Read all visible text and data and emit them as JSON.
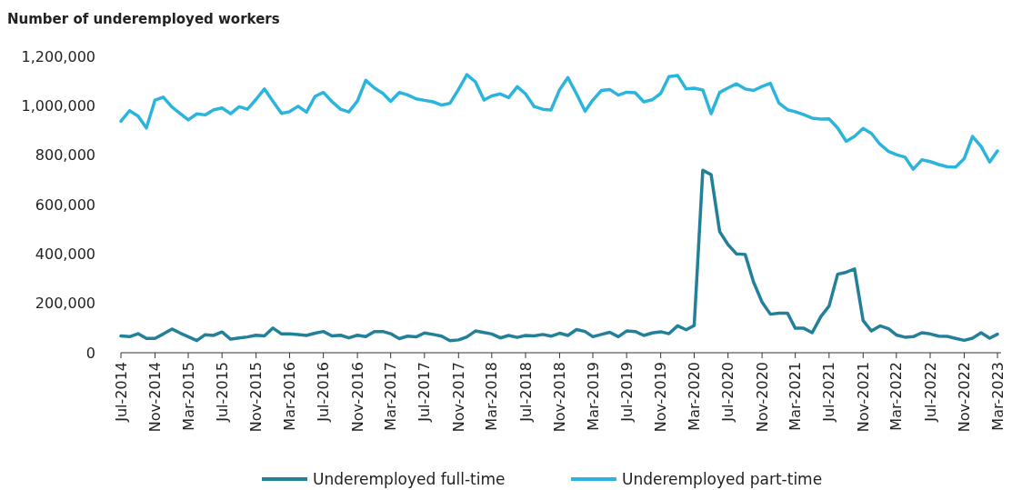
{
  "chart_data": {
    "type": "line",
    "ylabel": "Number of underemployed workers",
    "x": [
      "2014-07",
      "2014-08",
      "2014-09",
      "2014-10",
      "2014-11",
      "2014-12",
      "2015-01",
      "2015-02",
      "2015-03",
      "2015-04",
      "2015-05",
      "2015-06",
      "2015-07",
      "2015-08",
      "2015-09",
      "2015-10",
      "2015-11",
      "2015-12",
      "2016-01",
      "2016-02",
      "2016-03",
      "2016-04",
      "2016-05",
      "2016-06",
      "2016-07",
      "2016-08",
      "2016-09",
      "2016-10",
      "2016-11",
      "2016-12",
      "2017-01",
      "2017-02",
      "2017-03",
      "2017-04",
      "2017-05",
      "2017-06",
      "2017-07",
      "2017-08",
      "2017-09",
      "2017-10",
      "2017-11",
      "2017-12",
      "2018-01",
      "2018-02",
      "2018-03",
      "2018-04",
      "2018-05",
      "2018-06",
      "2018-07",
      "2018-08",
      "2018-09",
      "2018-10",
      "2018-11",
      "2018-12",
      "2019-01",
      "2019-02",
      "2019-03",
      "2019-04",
      "2019-05",
      "2019-06",
      "2019-07",
      "2019-08",
      "2019-09",
      "2019-10",
      "2019-11",
      "2019-12",
      "2020-01",
      "2020-02",
      "2020-03",
      "2020-04",
      "2020-05",
      "2020-06",
      "2020-07",
      "2020-08",
      "2020-09",
      "2020-10",
      "2020-11",
      "2020-12",
      "2021-01",
      "2021-02",
      "2021-03",
      "2021-04",
      "2021-05",
      "2021-06",
      "2021-07",
      "2021-08",
      "2021-09",
      "2021-10",
      "2021-11",
      "2021-12",
      "2022-01",
      "2022-02",
      "2022-03",
      "2022-04",
      "2022-05",
      "2022-06",
      "2022-07",
      "2022-08",
      "2022-09",
      "2022-10",
      "2022-11",
      "2022-12",
      "2023-01",
      "2023-02",
      "2023-03"
    ],
    "series": [
      {
        "name": "Underemployed full-time",
        "color": "#23809b",
        "values": [
          68000,
          65000,
          77000,
          58000,
          58000,
          76000,
          96000,
          79000,
          65000,
          49000,
          73000,
          70000,
          84000,
          55000,
          60000,
          64000,
          71000,
          68000,
          100000,
          76000,
          76000,
          74000,
          70000,
          79000,
          86000,
          68000,
          71000,
          60000,
          71000,
          65000,
          86000,
          86000,
          77000,
          57000,
          67000,
          64000,
          80000,
          74000,
          67000,
          49000,
          52000,
          64000,
          88000,
          82000,
          76000,
          60000,
          70000,
          62000,
          70000,
          68000,
          74000,
          67000,
          79000,
          70000,
          94000,
          86000,
          65000,
          74000,
          83000,
          65000,
          88000,
          86000,
          70000,
          80000,
          85000,
          77000,
          109000,
          93000,
          110000,
          739000,
          721000,
          490000,
          438000,
          400000,
          398000,
          287000,
          205000,
          156000,
          160000,
          160000,
          99000,
          99000,
          81000,
          146000,
          189000,
          318000,
          326000,
          339000,
          130000,
          88000,
          109000,
          97000,
          72000,
          63000,
          65000,
          81000,
          76000,
          67000,
          66000,
          58000,
          50000,
          59000,
          81000,
          59000,
          75000
        ]
      },
      {
        "name": "Underemployed part-time",
        "color": "#2bb5dd",
        "values": [
          937000,
          980000,
          958000,
          910000,
          1023000,
          1035000,
          995000,
          968000,
          943000,
          967000,
          963000,
          984000,
          991000,
          968000,
          996000,
          986000,
          1026000,
          1068000,
          1018000,
          969000,
          976000,
          998000,
          974000,
          1038000,
          1054000,
          1017000,
          986000,
          975000,
          1019000,
          1103000,
          1072000,
          1050000,
          1018000,
          1054000,
          1044000,
          1028000,
          1022000,
          1016000,
          1003000,
          1010000,
          1066000,
          1126000,
          1097000,
          1023000,
          1040000,
          1048000,
          1033000,
          1077000,
          1048000,
          997000,
          986000,
          983000,
          1065000,
          1114000,
          1048000,
          978000,
          1023000,
          1062000,
          1066000,
          1043000,
          1055000,
          1053000,
          1016000,
          1024000,
          1050000,
          1118000,
          1123000,
          1068000,
          1071000,
          1064000,
          968000,
          1054000,
          1072000,
          1089000,
          1068000,
          1062000,
          1078000,
          1091000,
          1011000,
          984000,
          976000,
          964000,
          950000,
          946000,
          947000,
          910000,
          856000,
          876000,
          908000,
          888000,
          844000,
          815000,
          802000,
          792000,
          743000,
          781000,
          774000,
          762000,
          753000,
          752000,
          786000,
          876000,
          835000,
          772000,
          817000
        ]
      }
    ],
    "xlim": [
      "2014-07",
      "2023-03"
    ],
    "xticks": [
      {
        "value": "2014-07",
        "label": "Jul-2014"
      },
      {
        "value": "2014-11",
        "label": "Nov-2014"
      },
      {
        "value": "2015-03",
        "label": "Mar-2015"
      },
      {
        "value": "2015-07",
        "label": "Jul-2015"
      },
      {
        "value": "2015-11",
        "label": "Nov-2015"
      },
      {
        "value": "2016-03",
        "label": "Mar-2016"
      },
      {
        "value": "2016-07",
        "label": "Jul-2016"
      },
      {
        "value": "2016-11",
        "label": "Nov-2016"
      },
      {
        "value": "2017-03",
        "label": "Mar-2017"
      },
      {
        "value": "2017-07",
        "label": "Jul-2017"
      },
      {
        "value": "2017-11",
        "label": "Nov-2017"
      },
      {
        "value": "2018-03",
        "label": "Mar-2018"
      },
      {
        "value": "2018-07",
        "label": "Jul-2018"
      },
      {
        "value": "2018-11",
        "label": "Nov-2018"
      },
      {
        "value": "2019-03",
        "label": "Mar-2019"
      },
      {
        "value": "2019-07",
        "label": "Jul-2019"
      },
      {
        "value": "2019-11",
        "label": "Nov-2019"
      },
      {
        "value": "2020-03",
        "label": "Mar-2020"
      },
      {
        "value": "2020-07",
        "label": "Jul-2020"
      },
      {
        "value": "2020-11",
        "label": "Nov-2020"
      },
      {
        "value": "2021-03",
        "label": "Mar-2021"
      },
      {
        "value": "2021-07",
        "label": "Jul-2021"
      },
      {
        "value": "2021-11",
        "label": "Nov-2021"
      },
      {
        "value": "2022-03",
        "label": "Mar-2022"
      },
      {
        "value": "2022-07",
        "label": "Jul-2022"
      },
      {
        "value": "2022-11",
        "label": "Nov-2022"
      },
      {
        "value": "2023-03",
        "label": "Mar-2023"
      }
    ],
    "ylim": [
      0,
      1200000
    ],
    "yticks": [
      0,
      {
        "value": 200000,
        "label": "200,000"
      },
      {
        "value": 400000,
        "label": "400,000"
      },
      {
        "value": 600000,
        "label": "600,000"
      },
      {
        "value": 800000,
        "label": "800,000"
      },
      {
        "value": 1000000,
        "label": "1,000,000"
      },
      {
        "value": 1200000,
        "label": "1,200,000"
      }
    ],
    "grid": false,
    "legend": "bottom",
    "marker": "none",
    "line_style": "solid"
  }
}
